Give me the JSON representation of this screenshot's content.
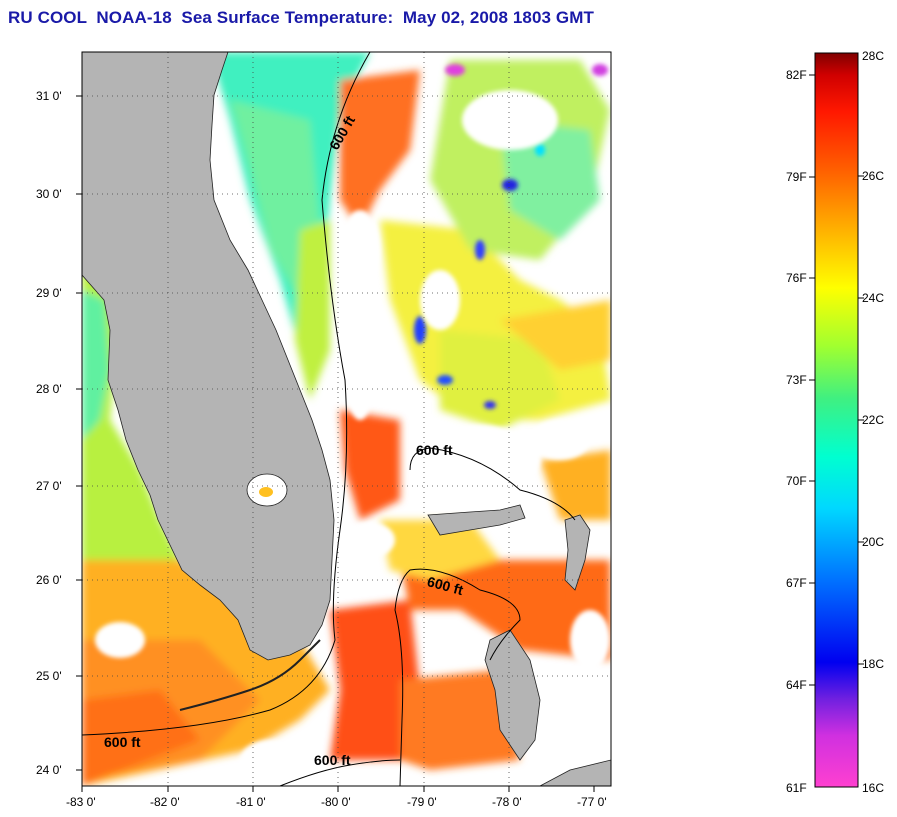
{
  "title": "RU COOL  NOAA-18  Sea Surface Temperature:  May 02, 2008 1803 GMT",
  "map": {
    "lon_range": [
      -83,
      -76.8
    ],
    "lat_range": [
      23.8,
      31.45
    ],
    "lon_labels": [
      "-83 0'",
      "-82 0'",
      "-81 0'",
      "-80 0'",
      "-79 0'",
      "-78 0'",
      "-77 0'"
    ],
    "lat_labels": [
      "24 0'",
      "25 0'",
      "26 0'",
      "27 0'",
      "28 0'",
      "29 0'",
      "30 0'",
      "31 0'"
    ],
    "contour_labels": [
      "600 ft",
      "600 ft",
      "600 ft",
      "600 ft",
      "600 ft"
    ],
    "land_color": "#b4b4b4",
    "cloud_color": "#ffffff",
    "grid": "dotted"
  },
  "colorbar": {
    "fahrenheit_labels": [
      "82F",
      "79F",
      "76F",
      "73F",
      "70F",
      "67F",
      "64F",
      "61F"
    ],
    "celsius_labels": [
      "28C",
      "26C",
      "24C",
      "22C",
      "20C",
      "18C",
      "16C"
    ],
    "range_c": [
      16,
      28
    ],
    "colors": [
      "#ff40d0",
      "#d030e0",
      "#7020e0",
      "#0000f0",
      "#0070ff",
      "#00d8ff",
      "#00ffd0",
      "#40f080",
      "#a0ff30",
      "#ffff00",
      "#ffb000",
      "#ff6000",
      "#ff1800",
      "#d00000",
      "#800000"
    ]
  }
}
